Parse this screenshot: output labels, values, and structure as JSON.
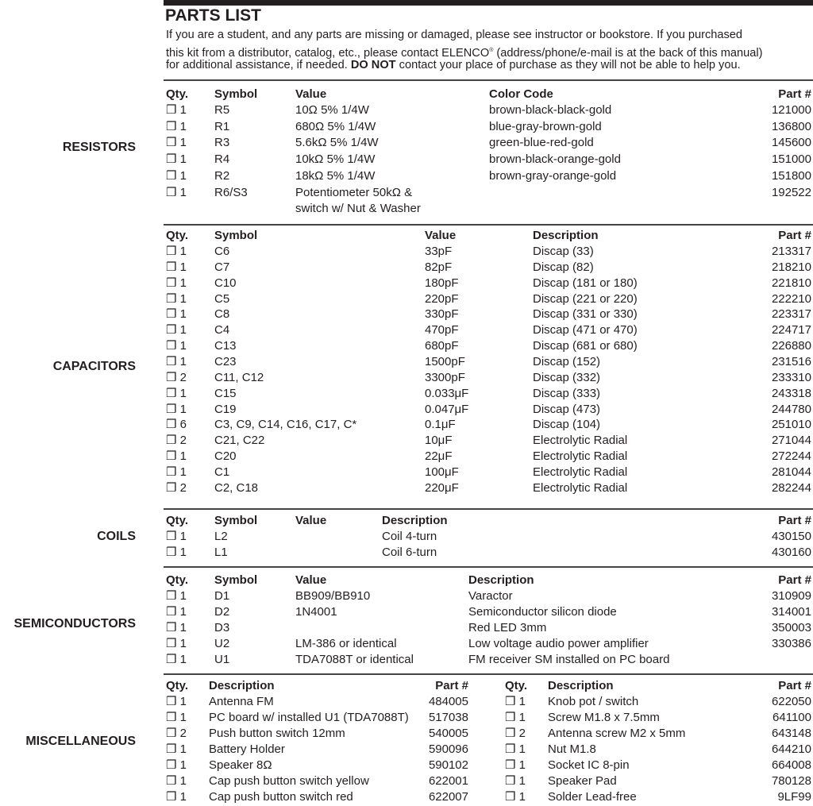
{
  "title": "PARTS LIST",
  "intro": {
    "line1": "If you are a student, and any parts are missing or damaged, please see instructor or bookstore. If you purchased",
    "line2a": "this kit from a distributor, catalog, etc., please contact ELENCO",
    "line2reg": "®",
    "line2b": " (address/phone/e-mail is at the back of this manual)",
    "line3a": "for additional assistance, if needed. ",
    "line3bold": "DO NOT",
    "line3b": " contact your place of purchase as they will not be able to help you."
  },
  "checkbox_icon": "❒",
  "sections": [
    {
      "label": "RESISTORS",
      "headers": [
        "Qty.",
        "Symbol",
        "Value",
        "Color Code",
        "Part #"
      ],
      "rows": [
        [
          "1",
          "R5",
          "10Ω 5% 1/4W",
          "brown-black-black-gold",
          "121000"
        ],
        [
          "1",
          "R1",
          "680Ω 5% 1/4W",
          "blue-gray-brown-gold",
          "136800"
        ],
        [
          "1",
          "R3",
          "5.6kΩ 5% 1/4W",
          "green-blue-red-gold",
          "145600"
        ],
        [
          "1",
          "R4",
          "10kΩ 5% 1/4W",
          "brown-black-orange-gold",
          "151000"
        ],
        [
          "1",
          "R2",
          "18kΩ 5% 1/4W",
          "brown-gray-orange-gold",
          "151800"
        ],
        [
          "1",
          "R6/S3",
          "Potentiometer 50kΩ &",
          "",
          "192522"
        ],
        [
          "",
          "",
          "switch w/ Nut & Washer",
          "",
          ""
        ]
      ]
    },
    {
      "label": "CAPACITORS",
      "headers": [
        "Qty.",
        "Symbol",
        "Value",
        "Description",
        "Part #"
      ],
      "rows": [
        [
          "1",
          "C6",
          "33pF",
          "Discap (33)",
          "213317"
        ],
        [
          "1",
          "C7",
          "82pF",
          "Discap (82)",
          "218210"
        ],
        [
          "1",
          "C10",
          "180pF",
          "Discap (181 or 180)",
          "221810"
        ],
        [
          "1",
          "C5",
          "220pF",
          "Discap (221 or 220)",
          "222210"
        ],
        [
          "1",
          "C8",
          "330pF",
          "Discap (331 or 330)",
          "223317"
        ],
        [
          "1",
          "C4",
          "470pF",
          "Discap (471 or 470)",
          "224717"
        ],
        [
          "1",
          "C13",
          "680pF",
          "Discap (681 or 680)",
          "226880"
        ],
        [
          "1",
          "C23",
          "1500pF",
          "Discap (152)",
          "231516"
        ],
        [
          "2",
          "C11, C12",
          "3300pF",
          "Discap (332)",
          "233310"
        ],
        [
          "1",
          "C15",
          "0.033μF",
          "Discap (333)",
          "243318"
        ],
        [
          "1",
          "C19",
          "0.047μF",
          "Discap (473)",
          "244780"
        ],
        [
          "6",
          "C3, C9, C14, C16, C17, C*",
          "0.1μF",
          "Discap (104)",
          "251010"
        ],
        [
          "2",
          "C21, C22",
          "10μF",
          "Electrolytic Radial",
          "271044"
        ],
        [
          "1",
          "C20",
          "22μF",
          "Electrolytic Radial",
          "272244"
        ],
        [
          "1",
          "C1",
          "100μF",
          "Electrolytic Radial",
          "281044"
        ],
        [
          "2",
          "C2, C18",
          "220μF",
          "Electrolytic Radial",
          "282244"
        ]
      ]
    },
    {
      "label": "COILS",
      "headers": [
        "Qty.",
        "Symbol",
        "Value",
        "Description",
        "Part #"
      ],
      "rows": [
        [
          "1",
          "L2",
          "",
          "Coil 4-turn",
          "430150"
        ],
        [
          "1",
          "L1",
          "",
          "Coil 6-turn",
          "430160"
        ]
      ]
    },
    {
      "label": "SEMICONDUCTORS",
      "headers": [
        "Qty.",
        "Symbol",
        "Value",
        "Description",
        "Part #"
      ],
      "rows": [
        [
          "1",
          "D1",
          "BB909/BB910",
          "Varactor",
          "310909"
        ],
        [
          "1",
          "D2",
          "1N4001",
          "Semiconductor silicon diode",
          "314001"
        ],
        [
          "1",
          "D3",
          "",
          "Red LED 3mm",
          "350003"
        ],
        [
          "1",
          "U2",
          "LM-386 or identical",
          "Low voltage audio power amplifier",
          "330386"
        ],
        [
          "1",
          "U1",
          "TDA7088T or identical",
          "FM receiver SM installed on PC board",
          ""
        ]
      ]
    },
    {
      "label": "MISCELLANEOUS",
      "headers": [
        "Qty.",
        "Description",
        "Part #",
        "Qty.",
        "Description",
        "Part #"
      ],
      "rows": [
        [
          "1",
          "Antenna FM",
          "484005",
          "1",
          "Knob pot / switch",
          "622050"
        ],
        [
          "1",
          "PC board w/ installed U1 (TDA7088T)",
          "517038",
          "1",
          "Screw M1.8 x 7.5mm",
          "641100"
        ],
        [
          "2",
          "Push button switch 12mm",
          "540005",
          "2",
          "Antenna screw M2 x 5mm",
          "643148"
        ],
        [
          "1",
          "Battery Holder",
          "590096",
          "1",
          "Nut M1.8",
          "644210"
        ],
        [
          "1",
          "Speaker 8Ω",
          "590102",
          "1",
          "Socket IC 8-pin",
          "664008"
        ],
        [
          "1",
          "Cap push button switch yellow",
          "622001",
          "1",
          "Speaker Pad",
          "780128"
        ],
        [
          "1",
          "Cap push button switch red",
          "622007",
          "1",
          "Solder Lead-free",
          "9LF99"
        ]
      ]
    }
  ]
}
